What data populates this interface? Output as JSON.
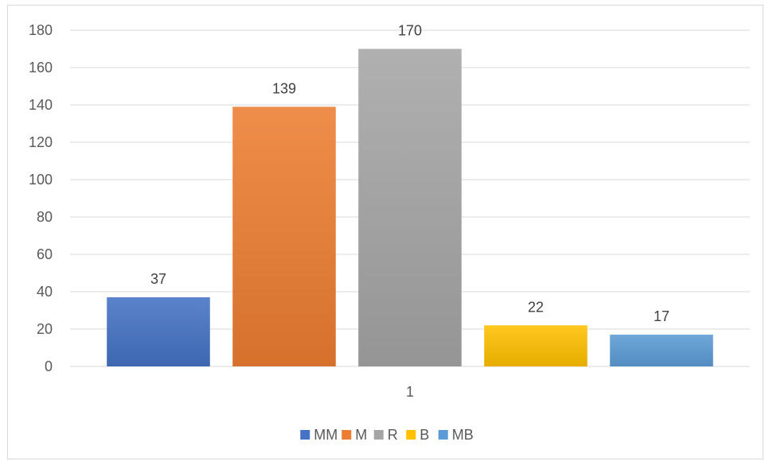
{
  "chart_data": {
    "type": "bar",
    "categories": [
      "1"
    ],
    "series": [
      {
        "name": "MM",
        "values": [
          37
        ],
        "color": "#4472C4"
      },
      {
        "name": "M",
        "values": [
          139
        ],
        "color": "#ED7D31"
      },
      {
        "name": "R",
        "values": [
          170
        ],
        "color": "#A5A5A5"
      },
      {
        "name": "B",
        "values": [
          22
        ],
        "color": "#FFC000"
      },
      {
        "name": "MB",
        "values": [
          17
        ],
        "color": "#5B9BD5"
      }
    ],
    "title": "",
    "xlabel": "",
    "ylabel": "",
    "ylim": [
      0,
      180
    ],
    "yticks": [
      0,
      20,
      40,
      60,
      80,
      100,
      120,
      140,
      160,
      180
    ],
    "grid": true,
    "legend": "bottom",
    "data_labels": true
  }
}
